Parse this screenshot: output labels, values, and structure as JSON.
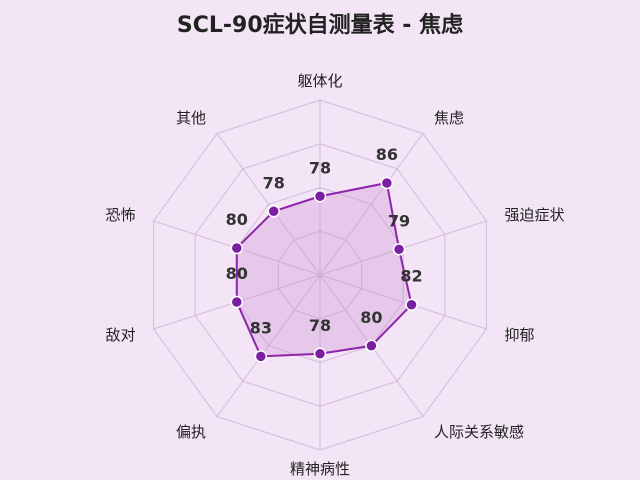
{
  "chart_data": {
    "type": "radar",
    "title": "SCL-90症状自测量表 - 焦虑",
    "categories": [
      "躯体化",
      "焦虑",
      "强迫症状",
      "抑郁",
      "人际关系敏感",
      "精神病性",
      "偏执",
      "敌对",
      "恐怖",
      "其他"
    ],
    "series": [
      {
        "values": [
          78,
          86,
          79,
          82,
          80,
          78,
          83,
          80,
          80,
          78
        ]
      }
    ],
    "rlim": [
      60,
      100
    ],
    "rings": [
      60,
      70,
      80,
      90,
      100
    ],
    "grid": true,
    "legend": false,
    "colors": {
      "background": "#f3e5f5",
      "line": "#8e24aa",
      "fill": "#ce93d8",
      "point": "#7b1fa2",
      "grid": "#cbb6d6"
    }
  }
}
